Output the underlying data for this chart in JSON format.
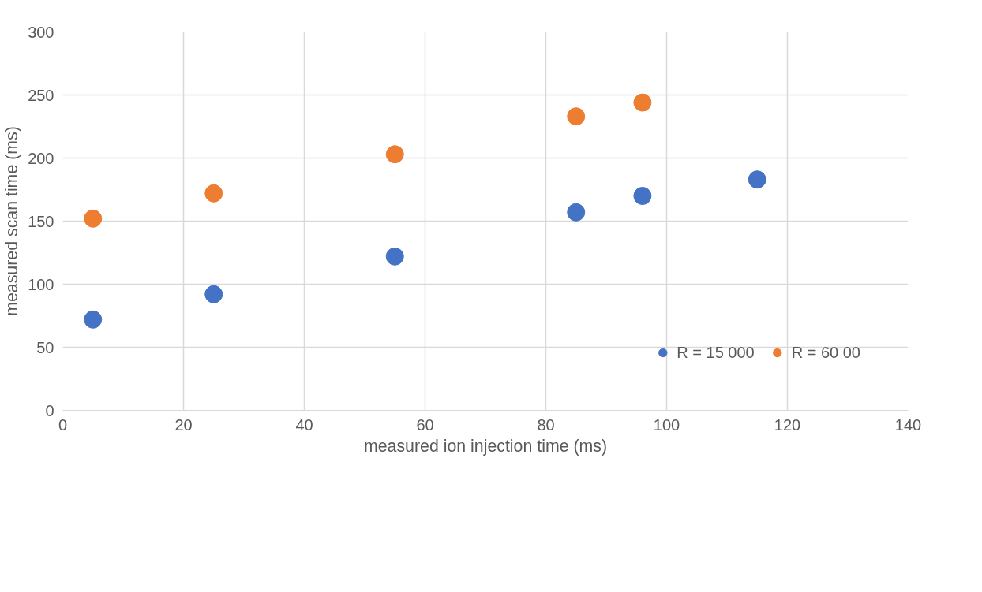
{
  "chart_data": {
    "type": "scatter",
    "xlabel": "measured ion injection time (ms)",
    "ylabel": "measured scan time (ms)",
    "series": [
      {
        "name": "R = 15 000",
        "color": "#4472c4",
        "x": [
          5,
          25,
          55,
          85,
          96,
          115
        ],
        "values": [
          72,
          92,
          122,
          157,
          170,
          183
        ]
      },
      {
        "name": "R = 60 00",
        "color": "#ed7d31",
        "x": [
          5,
          25,
          55,
          85,
          96
        ],
        "values": [
          152,
          172,
          203,
          233,
          244
        ]
      }
    ],
    "xlim": [
      0,
      140
    ],
    "xticks": [
      0,
      20,
      40,
      60,
      80,
      100,
      120,
      140
    ],
    "ylim": [
      0,
      300
    ],
    "yticks": [
      0,
      50,
      100,
      150,
      200,
      250,
      300
    ],
    "grid": true,
    "legend": "bottom right",
    "marker": "circle"
  }
}
